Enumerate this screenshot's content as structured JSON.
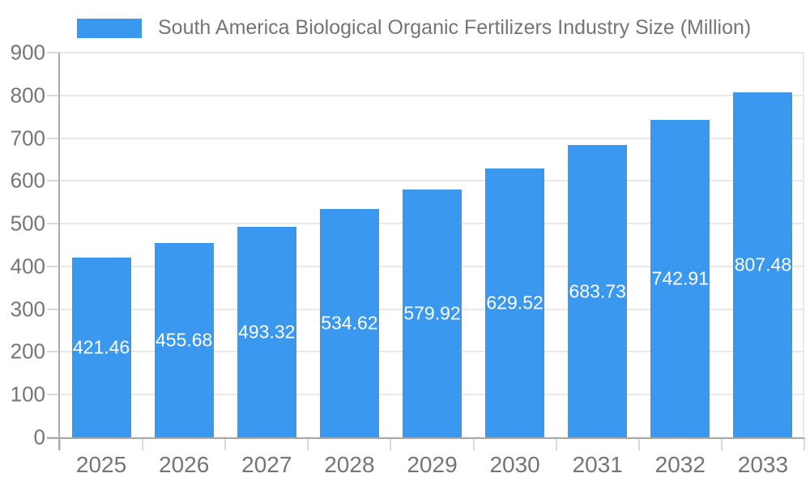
{
  "legend": {
    "label": "South America Biological Organic Fertilizers Industry Size (Million)"
  },
  "chart_data": {
    "type": "bar",
    "title": "South America Biological Organic Fertilizers Industry Size (Million)",
    "categories": [
      "2025",
      "2026",
      "2027",
      "2028",
      "2029",
      "2030",
      "2031",
      "2032",
      "2033"
    ],
    "values": [
      421.46,
      455.68,
      493.32,
      534.62,
      579.92,
      629.52,
      683.73,
      742.91,
      807.48
    ],
    "value_labels": [
      "421.46",
      "455.68",
      "493.32",
      "534.62",
      "579.92",
      "629.52",
      "683.73",
      "742.91",
      "807.48"
    ],
    "yticks": [
      0,
      100,
      200,
      300,
      400,
      500,
      600,
      700,
      800,
      900
    ],
    "ylim": [
      0,
      900
    ],
    "xlabel": "",
    "ylabel": "",
    "grid": true,
    "legend_position": "top",
    "colors": {
      "bar": "#3a99ee",
      "bar_label": "#ffffff",
      "axis_text": "#757575",
      "grid_line": "#e9e9e9",
      "tick_line": "#d9d9d9",
      "axis_line": "#ababab"
    }
  }
}
